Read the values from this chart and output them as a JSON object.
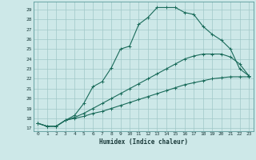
{
  "xlabel": "Humidex (Indice chaleur)",
  "bg_color": "#cde8e8",
  "grid_color": "#a0c8c8",
  "line_color": "#1a6b5a",
  "xlim": [
    -0.5,
    23.5
  ],
  "ylim": [
    16.7,
    29.8
  ],
  "xticks": [
    0,
    1,
    2,
    3,
    4,
    5,
    6,
    7,
    8,
    9,
    10,
    11,
    12,
    13,
    14,
    15,
    16,
    17,
    18,
    19,
    20,
    21,
    22,
    23
  ],
  "yticks": [
    17,
    18,
    19,
    20,
    21,
    22,
    23,
    24,
    25,
    26,
    27,
    28,
    29
  ],
  "curve1_x": [
    0,
    1,
    2,
    3,
    4,
    5,
    6,
    7,
    8,
    9,
    10,
    11,
    12,
    13,
    14,
    15,
    16,
    17,
    18,
    19,
    20,
    21,
    22,
    23
  ],
  "curve1_y": [
    17.5,
    17.2,
    17.2,
    17.8,
    18.3,
    19.5,
    21.2,
    21.7,
    23.1,
    25.0,
    25.3,
    27.5,
    28.2,
    29.2,
    29.2,
    29.2,
    28.7,
    28.5,
    27.3,
    26.5,
    25.9,
    25.0,
    23.0,
    22.3
  ],
  "curve2_x": [
    0,
    1,
    2,
    3,
    4,
    5,
    6,
    7,
    8,
    9,
    10,
    11,
    12,
    13,
    14,
    15,
    16,
    17,
    18,
    19,
    20,
    21,
    22,
    23
  ],
  "curve2_y": [
    17.5,
    17.2,
    17.2,
    17.8,
    18.1,
    18.5,
    19.0,
    19.5,
    20.0,
    20.5,
    21.0,
    21.5,
    22.0,
    22.5,
    23.0,
    23.5,
    24.0,
    24.3,
    24.5,
    24.5,
    24.5,
    24.2,
    23.5,
    22.3
  ],
  "curve3_x": [
    0,
    1,
    2,
    3,
    4,
    5,
    6,
    7,
    8,
    9,
    10,
    11,
    12,
    13,
    14,
    15,
    16,
    17,
    18,
    19,
    20,
    21,
    22,
    23
  ],
  "curve3_y": [
    17.5,
    17.2,
    17.2,
    17.8,
    18.0,
    18.2,
    18.5,
    18.7,
    19.0,
    19.3,
    19.6,
    19.9,
    20.2,
    20.5,
    20.8,
    21.1,
    21.4,
    21.6,
    21.8,
    22.0,
    22.1,
    22.2,
    22.2,
    22.2
  ]
}
